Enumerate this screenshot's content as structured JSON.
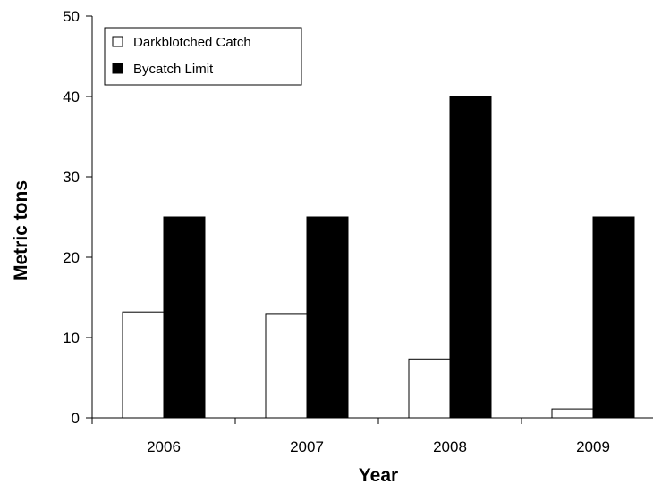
{
  "chart_data": {
    "type": "bar",
    "categories": [
      "2006",
      "2007",
      "2008",
      "2009"
    ],
    "series": [
      {
        "name": "Darkblotched Catch",
        "values": [
          13.2,
          12.9,
          7.3,
          1.1
        ],
        "color": "#ffffff"
      },
      {
        "name": "Bycatch Limit",
        "values": [
          25,
          25,
          40,
          25
        ],
        "color": "#000000"
      }
    ],
    "xlabel": "Year",
    "ylabel": "Metric tons",
    "ylim": [
      0,
      50
    ],
    "yticks": [
      "0",
      "10",
      "20",
      "30",
      "40",
      "50"
    ],
    "grid": false,
    "legend_position": "top-left"
  }
}
